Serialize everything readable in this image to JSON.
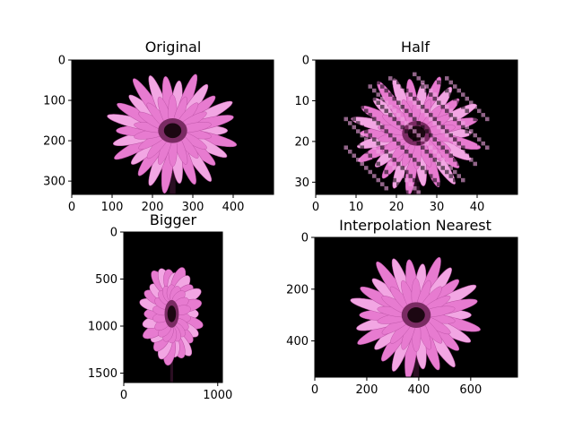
{
  "figure": {
    "background": "#ffffff",
    "image_bg": "#000000",
    "petal_color": "#e77bd0",
    "petal_edge": "#b84fa2",
    "petal_light": "#f2a6e3",
    "center_color": "#1c0712",
    "center_ring": "#7a2b63"
  },
  "chart_data": [
    {
      "type": "image",
      "title": "Original",
      "image_content": "pink-gerbera-flower",
      "xlim": [
        0,
        500
      ],
      "ylim": [
        333,
        0
      ],
      "xticks": [
        0,
        100,
        200,
        300,
        400
      ],
      "yticks": [
        0,
        100,
        200,
        300
      ],
      "xtick_labels": [
        "0",
        "100",
        "200",
        "300",
        "400"
      ],
      "ytick_labels": [
        "0",
        "100",
        "200",
        "300"
      ],
      "flower_center": [
        250,
        175
      ],
      "pixelated": false
    },
    {
      "type": "image",
      "title": "Half",
      "image_content": "pink-gerbera-flower",
      "xlim": [
        0,
        50
      ],
      "ylim": [
        33,
        0
      ],
      "xticks": [
        0,
        10,
        20,
        30,
        40
      ],
      "yticks": [
        0,
        10,
        20,
        30
      ],
      "xtick_labels": [
        "0",
        "10",
        "20",
        "30",
        "40"
      ],
      "ytick_labels": [
        "0",
        "10",
        "20",
        "30"
      ],
      "flower_center": [
        25,
        18
      ],
      "pixelated": true
    },
    {
      "type": "image",
      "title": "Bigger",
      "image_content": "pink-gerbera-flower",
      "xlim": [
        0,
        1050
      ],
      "ylim": [
        1600,
        0
      ],
      "xticks": [
        0,
        1000
      ],
      "yticks": [
        0,
        500,
        1000,
        1500
      ],
      "xtick_labels": [
        "0",
        "1000"
      ],
      "ytick_labels": [
        "0",
        "500",
        "1000",
        "1500"
      ],
      "flower_center": [
        510,
        870
      ],
      "pixelated": false
    },
    {
      "type": "image",
      "title": "Interpolation Nearest",
      "image_content": "pink-gerbera-flower",
      "xlim": [
        0,
        780
      ],
      "ylim": [
        540,
        0
      ],
      "xticks": [
        0,
        200,
        400,
        600
      ],
      "yticks": [
        0,
        200,
        400
      ],
      "xtick_labels": [
        "0",
        "200",
        "400",
        "600"
      ],
      "ytick_labels": [
        "0",
        "200",
        "400"
      ],
      "flower_center": [
        390,
        300
      ],
      "pixelated": false
    }
  ]
}
